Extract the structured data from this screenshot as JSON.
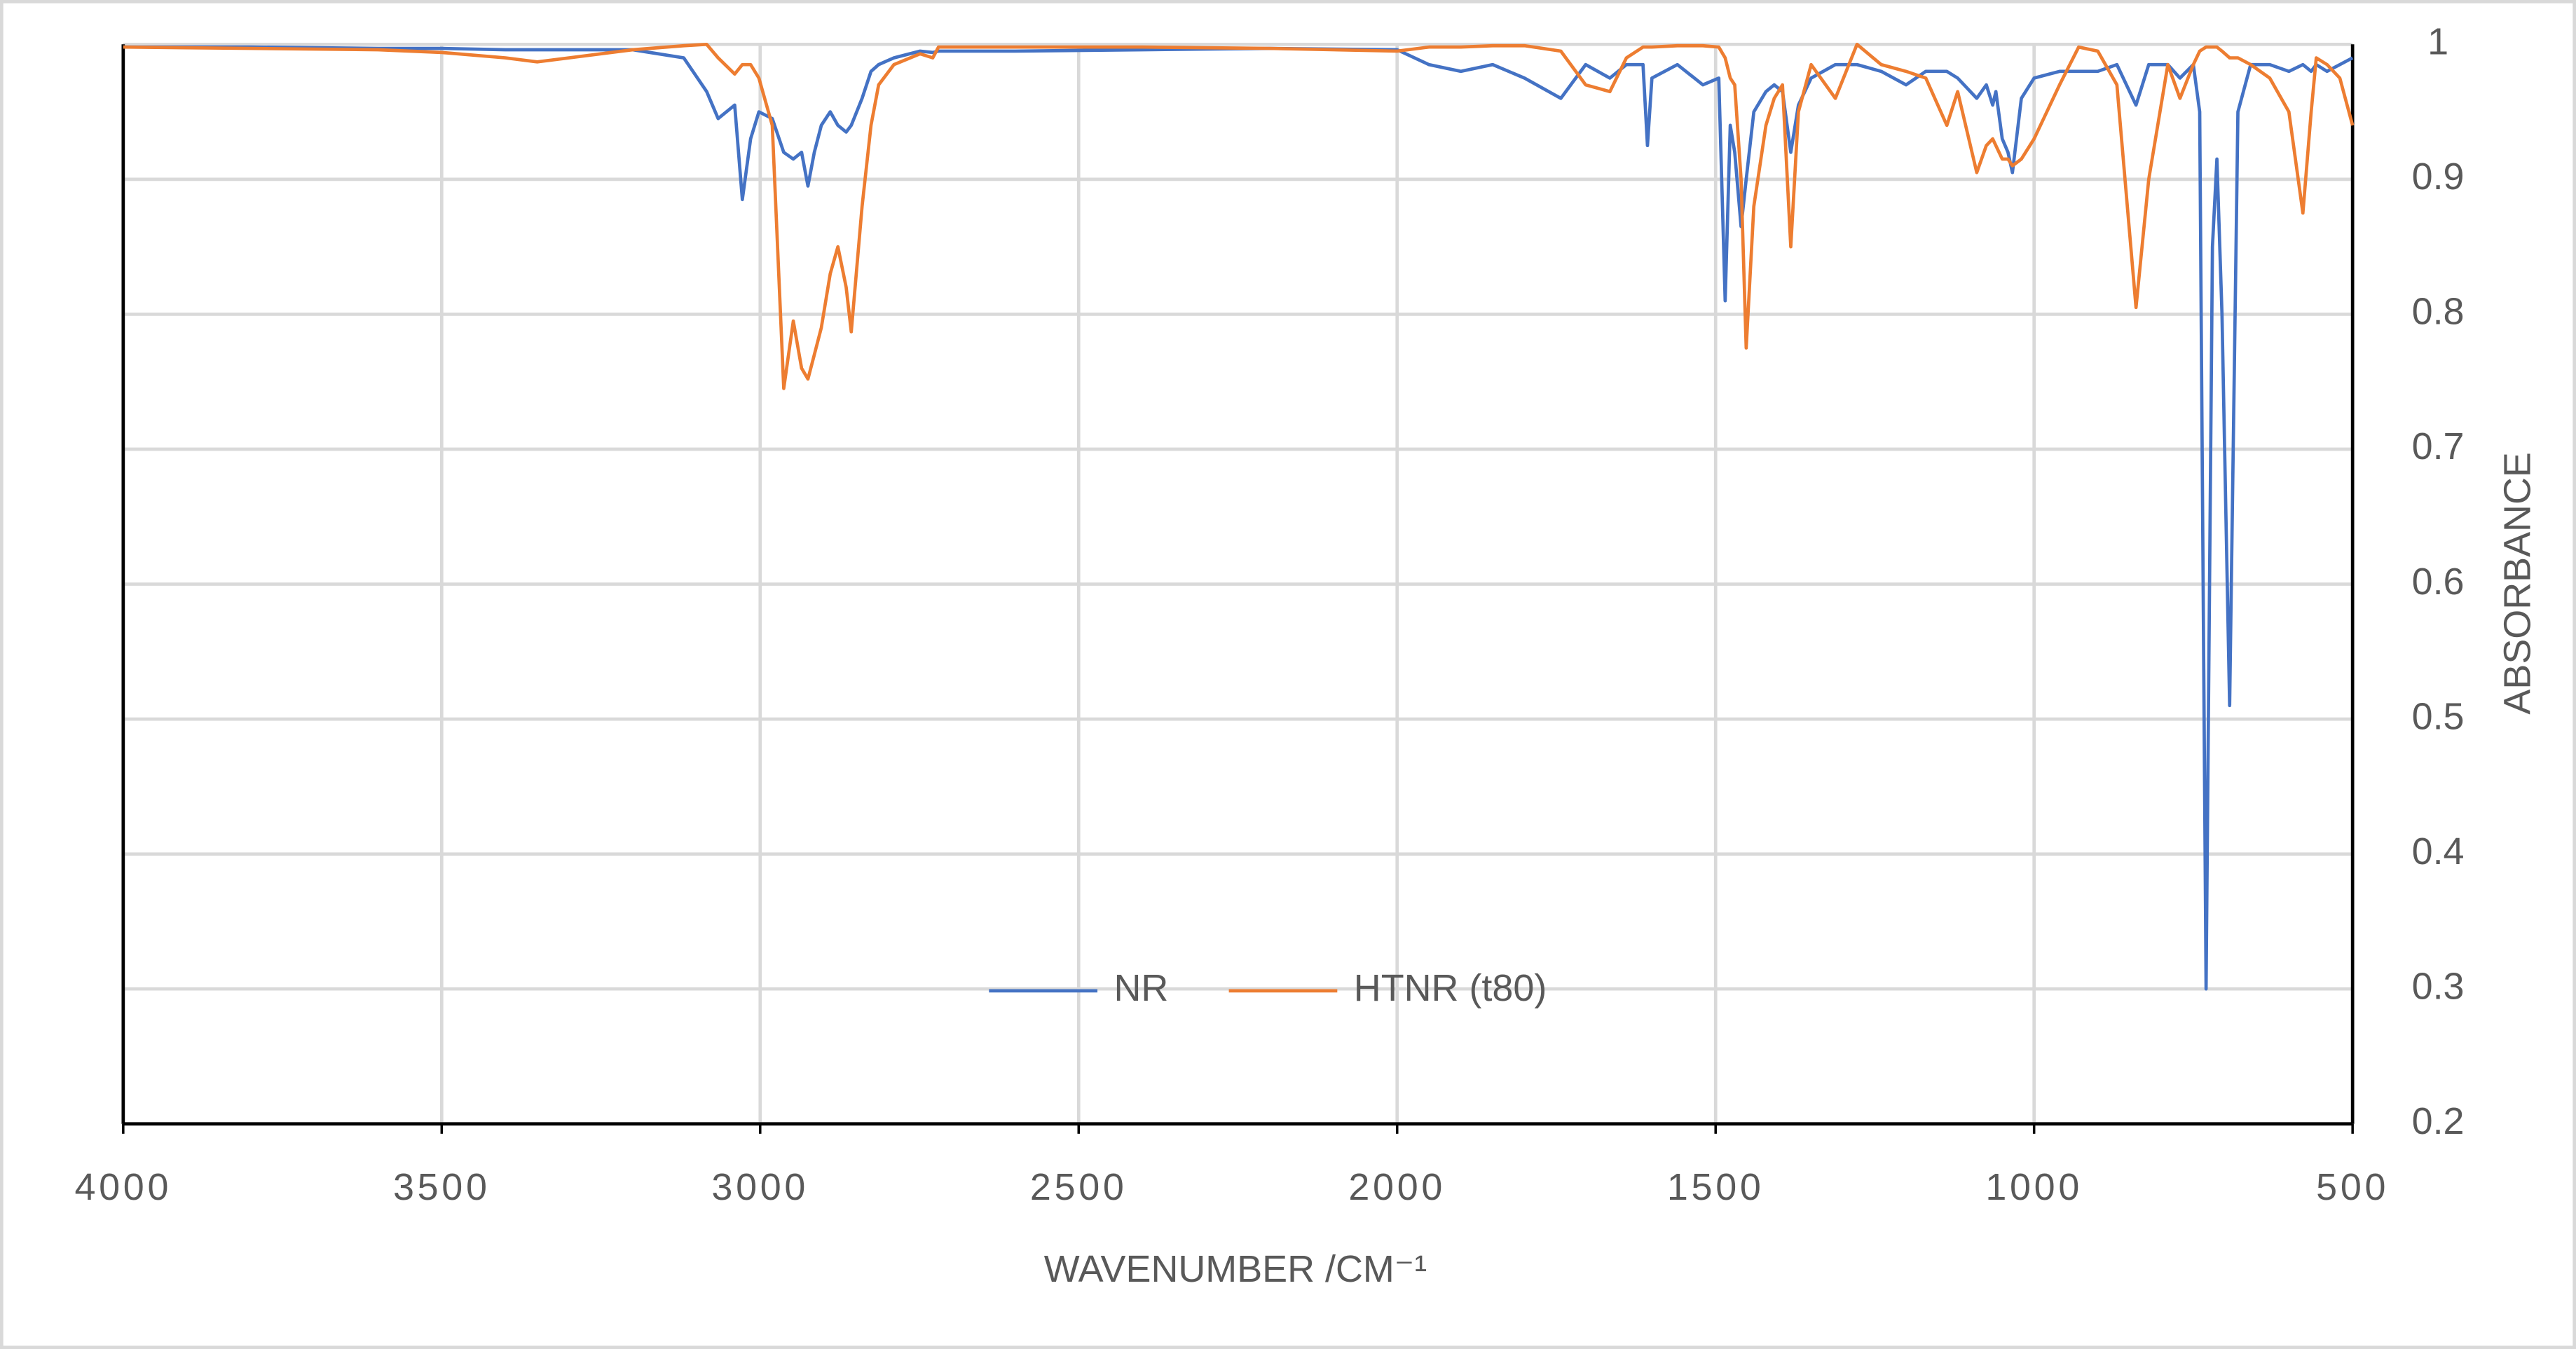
{
  "chart_data": {
    "type": "line",
    "x_label": "WAVENUMBER /CM⁻¹",
    "y_label": "ABSORBANCE",
    "xlim": [
      4000,
      500
    ],
    "xticks": [
      4000,
      3500,
      3000,
      2500,
      2000,
      1500,
      1000,
      500
    ],
    "ylim": [
      0.2,
      1
    ],
    "yticks": [
      0.2,
      0.3,
      0.4,
      0.5,
      0.6,
      0.7,
      0.8,
      0.9,
      1
    ],
    "y_axis_side": "right",
    "grid": true,
    "legend": "bottom",
    "x": [
      4000,
      3800,
      3600,
      3500,
      3400,
      3350,
      3300,
      3200,
      3120,
      3084,
      3066,
      3040,
      3028,
      3015,
      3002,
      2981,
      2963,
      2948,
      2935,
      2925,
      2915,
      2904,
      2890,
      2878,
      2865,
      2857,
      2840,
      2826,
      2814,
      2790,
      2749,
      2729,
      2720,
      2600,
      2400,
      2200,
      2000,
      1950,
      1900,
      1850,
      1800,
      1743,
      1704,
      1666,
      1640,
      1614,
      1607,
      1600,
      1560,
      1520,
      1495,
      1485,
      1477,
      1470,
      1460,
      1452,
      1440,
      1421,
      1408,
      1395,
      1382,
      1370,
      1350,
      1312,
      1278,
      1240,
      1201,
      1170,
      1137,
      1120,
      1090,
      1075,
      1065,
      1060,
      1050,
      1041,
      1034,
      1020,
      1000,
      960,
      930,
      900,
      870,
      840,
      820,
      790,
      771,
      750,
      740,
      730,
      720,
      713,
      705,
      693,
      680,
      660,
      630,
      600,
      578,
      565,
      557,
      540,
      520,
      500
    ],
    "series": [
      {
        "name": "NR",
        "color": "#4472c4",
        "values": [
          0.998,
          0.998,
          0.997,
          0.997,
          0.996,
          0.996,
          0.996,
          0.996,
          0.99,
          0.965,
          0.945,
          0.955,
          0.885,
          0.93,
          0.95,
          0.945,
          0.92,
          0.915,
          0.92,
          0.895,
          0.92,
          0.94,
          0.95,
          0.94,
          0.935,
          0.94,
          0.96,
          0.98,
          0.985,
          0.99,
          0.995,
          0.994,
          0.995,
          0.995,
          0.996,
          0.997,
          0.996,
          0.985,
          0.98,
          0.985,
          0.975,
          0.96,
          0.985,
          0.975,
          0.985,
          0.985,
          0.925,
          0.975,
          0.985,
          0.97,
          0.975,
          0.81,
          0.94,
          0.92,
          0.865,
          0.9,
          0.95,
          0.965,
          0.97,
          0.965,
          0.92,
          0.955,
          0.975,
          0.985,
          0.985,
          0.98,
          0.97,
          0.98,
          0.98,
          0.975,
          0.96,
          0.97,
          0.955,
          0.965,
          0.93,
          0.92,
          0.905,
          0.96,
          0.975,
          0.98,
          0.98,
          0.98,
          0.985,
          0.955,
          0.985,
          0.985,
          0.975,
          0.985,
          0.95,
          0.3,
          0.85,
          0.915,
          0.8,
          0.51,
          0.95,
          0.985,
          0.985,
          0.98,
          0.985,
          0.98,
          0.985,
          0.98,
          0.985,
          0.99
        ]
      },
      {
        "name": "HTNR (t80)",
        "color": "#ed7d31",
        "values": [
          0.998,
          0.997,
          0.996,
          0.994,
          0.99,
          0.987,
          0.99,
          0.996,
          0.999,
          1.0,
          0.99,
          0.978,
          0.985,
          0.985,
          0.975,
          0.94,
          0.745,
          0.795,
          0.76,
          0.752,
          0.77,
          0.79,
          0.83,
          0.85,
          0.82,
          0.787,
          0.88,
          0.94,
          0.97,
          0.985,
          0.993,
          0.99,
          0.998,
          0.998,
          0.998,
          0.997,
          0.995,
          0.998,
          0.998,
          0.999,
          0.999,
          0.995,
          0.97,
          0.965,
          0.99,
          0.998,
          0.998,
          0.998,
          0.999,
          0.999,
          0.998,
          0.99,
          0.975,
          0.97,
          0.9,
          0.775,
          0.88,
          0.94,
          0.96,
          0.97,
          0.85,
          0.95,
          0.985,
          0.96,
          1.0,
          0.985,
          0.98,
          0.975,
          0.94,
          0.965,
          0.905,
          0.925,
          0.93,
          0.925,
          0.915,
          0.915,
          0.91,
          0.915,
          0.93,
          0.97,
          0.998,
          0.995,
          0.97,
          0.805,
          0.9,
          0.985,
          0.96,
          0.985,
          0.995,
          0.998,
          0.998,
          0.998,
          0.995,
          0.99,
          0.99,
          0.985,
          0.975,
          0.95,
          0.875,
          0.95,
          0.99,
          0.985,
          0.975,
          0.94
        ]
      }
    ]
  }
}
